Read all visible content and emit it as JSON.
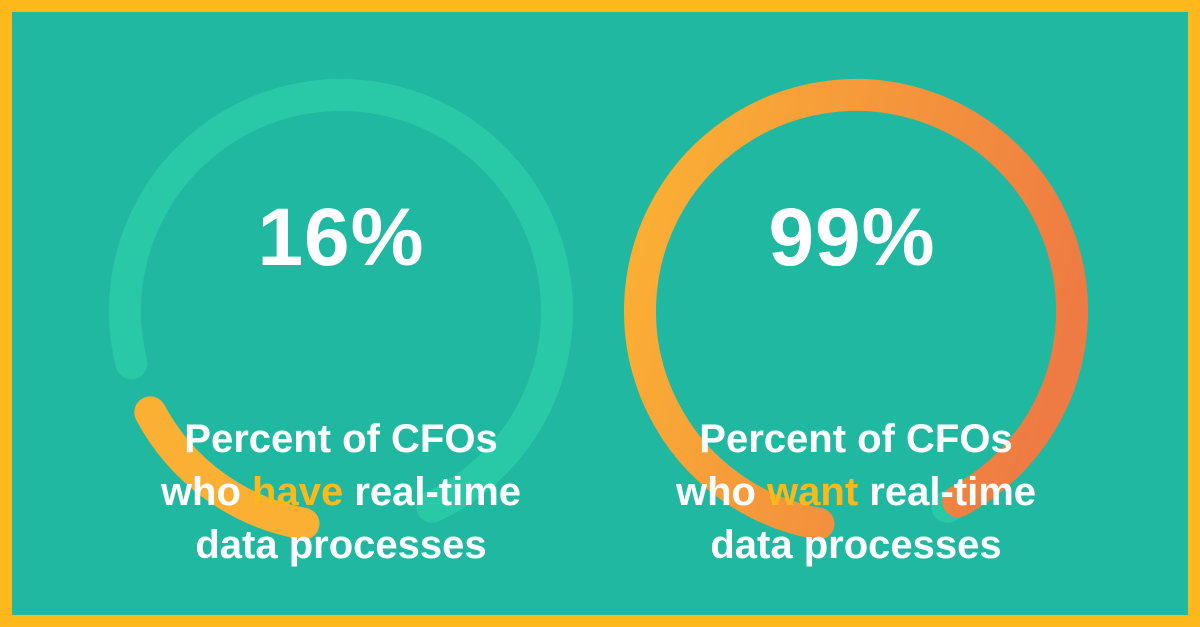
{
  "colors": {
    "border": "#ffb81c",
    "background": "#20b8a0",
    "track": "#29c9a8",
    "gradient_start": "#fbb034",
    "gradient_end": "#ee7b43",
    "highlight": "#ffb81c",
    "text": "#ffffff"
  },
  "chart_data": [
    {
      "type": "gauge",
      "value": 16,
      "max": 100,
      "value_label": "16%",
      "caption": {
        "line1": "Percent of CFOs",
        "line2_pre": "who ",
        "highlight": "have",
        "line2_post": " real-time",
        "line3": "data processes"
      }
    },
    {
      "type": "gauge",
      "value": 99,
      "max": 100,
      "value_label": "99%",
      "caption": {
        "line1": "Percent of CFOs",
        "line2_pre": "who ",
        "highlight": "want",
        "line2_post": " real-time",
        "line3": "data processes"
      }
    }
  ]
}
